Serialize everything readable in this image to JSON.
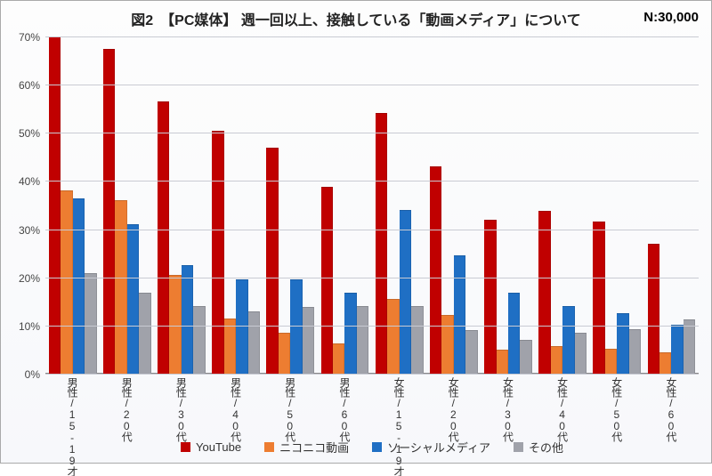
{
  "chart": {
    "type": "bar-grouped",
    "title": "図2　【PC媒体】 週一回以上、接触している「動画メディア」について",
    "n_label": "N:30,000",
    "ymax": 70,
    "ytick_step": 10,
    "ytick_suffix": "%",
    "grid_color": "#c9cbd3",
    "background_color": "#fafbfe",
    "categories": [
      "男性/15-19才",
      "男性/20代",
      "男性/30代",
      "男性/40代",
      "男性/50代",
      "男性/60代",
      "女性/15-19才",
      "女性/20代",
      "女性/30代",
      "女性/40代",
      "女性/50代",
      "女性/60代"
    ],
    "series": [
      {
        "name": "YouTube",
        "color": "#c00000",
        "values": [
          70,
          67.5,
          56.5,
          50.5,
          47,
          38.8,
          54.2,
          43,
          32,
          33.8,
          31.5,
          27
        ]
      },
      {
        "name": "ニコニコ動画",
        "color": "#ed7d31",
        "values": [
          38,
          36,
          20.5,
          11.5,
          8.5,
          6.2,
          15.5,
          12.2,
          5,
          5.8,
          5.2,
          4.5
        ]
      },
      {
        "name": "ソーシャルメディア",
        "color": "#1f6fc4",
        "values": [
          36.3,
          31,
          22.5,
          19.6,
          19.6,
          16.8,
          34,
          24.6,
          16.8,
          14,
          12.5,
          10.2
        ]
      },
      {
        "name": "その他",
        "color": "#a0a2aa",
        "values": [
          20.8,
          16.8,
          14,
          13,
          13.8,
          14,
          14,
          9,
          7,
          8.5,
          9.2,
          11.2
        ]
      }
    ],
    "title_fontsize": 16,
    "label_fontsize": 12
  }
}
